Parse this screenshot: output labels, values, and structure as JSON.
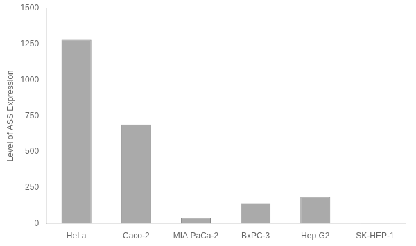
{
  "chart_data": {
    "type": "bar",
    "ylabel": "Level of ASS Expression",
    "categories": [
      "HeLa",
      "Caco-2",
      "MIA PaCa-2",
      "BxPC-3",
      "Hep G2",
      "SK-HEP-1"
    ],
    "values": [
      1280,
      690,
      40,
      140,
      185,
      2
    ],
    "color": "#aaaaaa",
    "ylim": [
      0,
      1500
    ],
    "yticks": [
      0,
      250,
      500,
      750,
      1000,
      1250,
      1500
    ],
    "grid": false
  }
}
